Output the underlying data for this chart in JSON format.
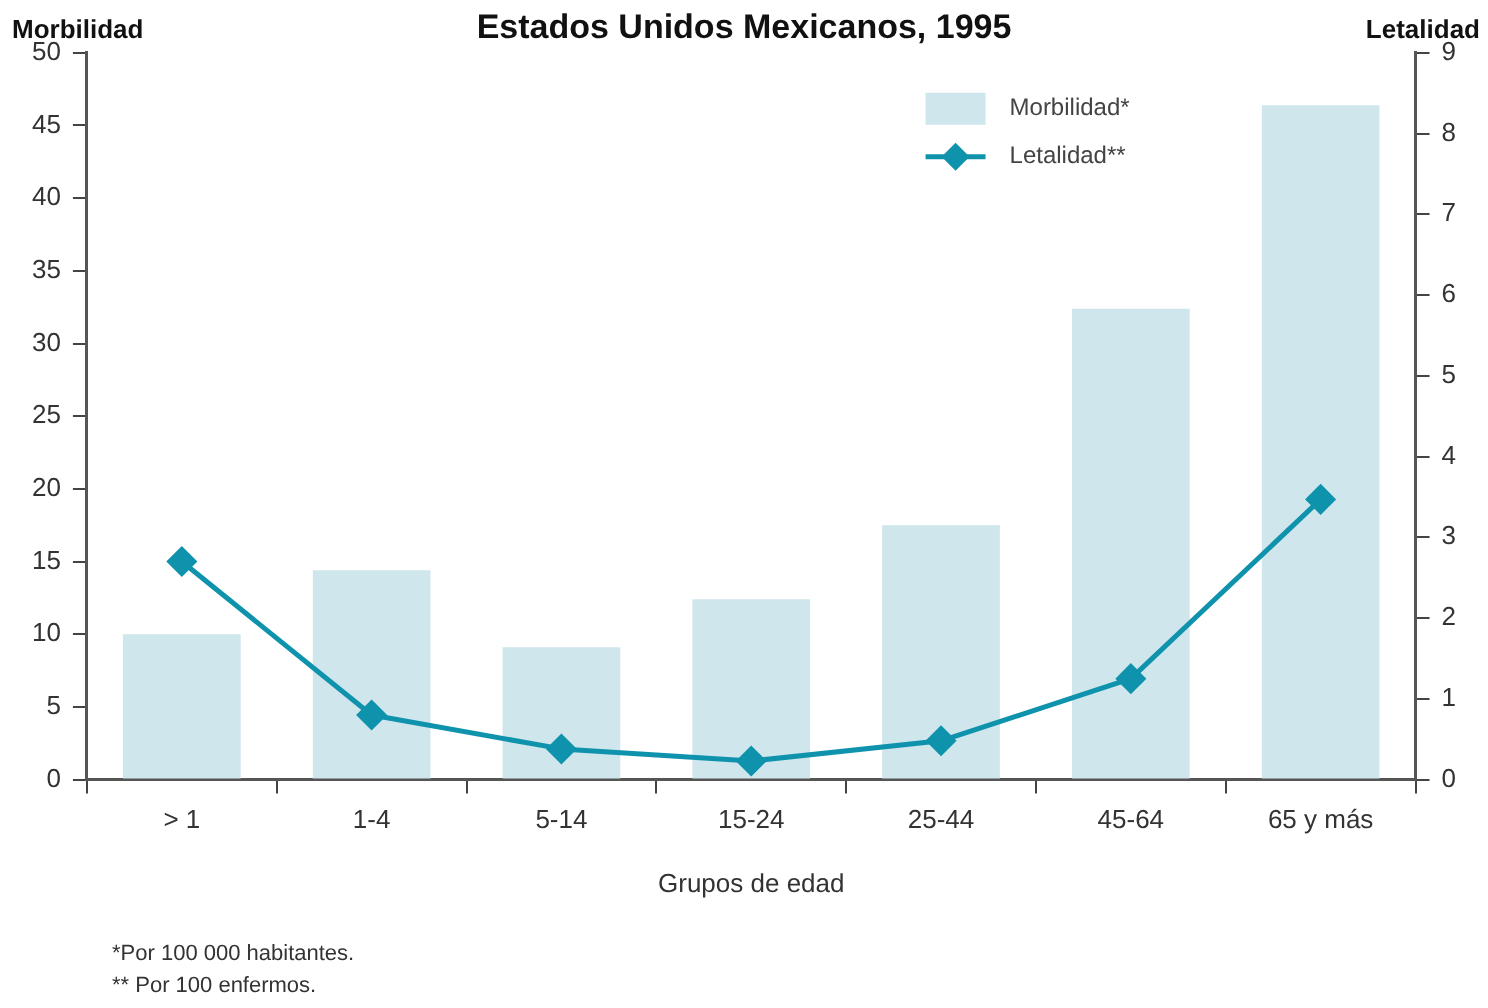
{
  "chart_data": {
    "type": "bar",
    "title": "Estados Unidos Mexicanos, 1995",
    "xlabel": "Grupos de edad",
    "ylabel": "Morbilidad",
    "y2label": "Letalidad",
    "categories": [
      "> 1",
      "1-4",
      "5-14",
      "15-24",
      "25-44",
      "45-64",
      "65 y más"
    ],
    "series": [
      {
        "name": "Morbilidad*",
        "color": "#cfe6ec",
        "values": [
          10.0,
          14.4,
          9.1,
          12.4,
          17.5,
          32.4,
          46.4
        ]
      },
      {
        "name": "Letalidad**",
        "type": "line",
        "axis": "y2",
        "color": "#0f93ad",
        "marker": "diamond",
        "values": [
          2.7,
          0.8,
          0.38,
          0.23,
          0.48,
          1.25,
          3.47
        ]
      }
    ],
    "ylim": [
      0,
      50
    ],
    "yticks": [
      0,
      5,
      10,
      15,
      20,
      25,
      30,
      35,
      40,
      45,
      50
    ],
    "y2lim": [
      0,
      9
    ],
    "y2ticks": [
      0,
      1,
      2,
      3,
      4,
      5,
      6,
      7,
      8,
      9
    ],
    "grid": false,
    "legend": "top right",
    "annotations": [
      "*Por 100 000 habitantes.",
      "** Por 100 enfermos."
    ]
  }
}
